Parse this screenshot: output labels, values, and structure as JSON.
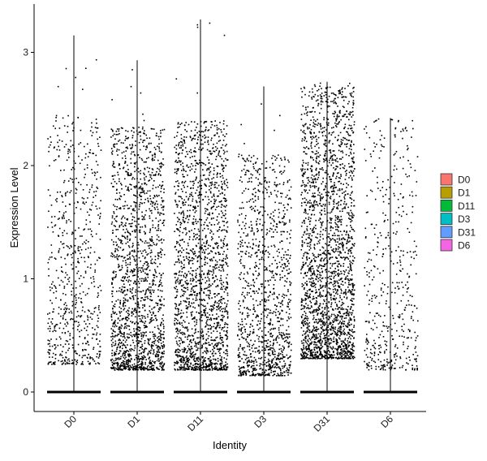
{
  "chart_data": {
    "type": "scatter",
    "subtype": "violin-jitter",
    "xlabel": "Identity",
    "ylabel": "Expression Level",
    "categories": [
      "D0",
      "D1",
      "D11",
      "D3",
      "D31",
      "D6"
    ],
    "ylim": [
      -0.18,
      3.42
    ],
    "yticks": [
      0,
      1,
      2,
      3
    ],
    "grid": false,
    "legend": {
      "position": "right",
      "entries": [
        {
          "label": "D0",
          "color": "#F8766D"
        },
        {
          "label": "D1",
          "color": "#B79F00"
        },
        {
          "label": "D11",
          "color": "#00BA38"
        },
        {
          "label": "D3",
          "color": "#00BFC4"
        },
        {
          "label": "D31",
          "color": "#619CFF"
        },
        {
          "label": "D6",
          "color": "#F564E3"
        }
      ]
    },
    "series": [
      {
        "group": "D0",
        "max": 3.15,
        "upper": 2.45,
        "lower": 0.25,
        "n_expressing": 650,
        "zero_band": true
      },
      {
        "group": "D1",
        "max": 2.93,
        "upper": 2.35,
        "lower": 0.2,
        "n_expressing": 1700,
        "zero_band": true
      },
      {
        "group": "D11",
        "max": 3.29,
        "upper": 2.4,
        "lower": 0.2,
        "n_expressing": 1800,
        "zero_band": true
      },
      {
        "group": "D3",
        "max": 2.7,
        "upper": 2.1,
        "lower": 0.15,
        "n_expressing": 1100,
        "zero_band": true
      },
      {
        "group": "D31",
        "max": 2.74,
        "upper": 2.7,
        "lower": 0.3,
        "n_expressing": 2300,
        "zero_band": true
      },
      {
        "group": "D6",
        "max": 2.42,
        "upper": 2.4,
        "lower": 0.2,
        "n_expressing": 450,
        "zero_band": true
      }
    ],
    "point_color": "#000000",
    "violin_line_color": "#000000"
  }
}
